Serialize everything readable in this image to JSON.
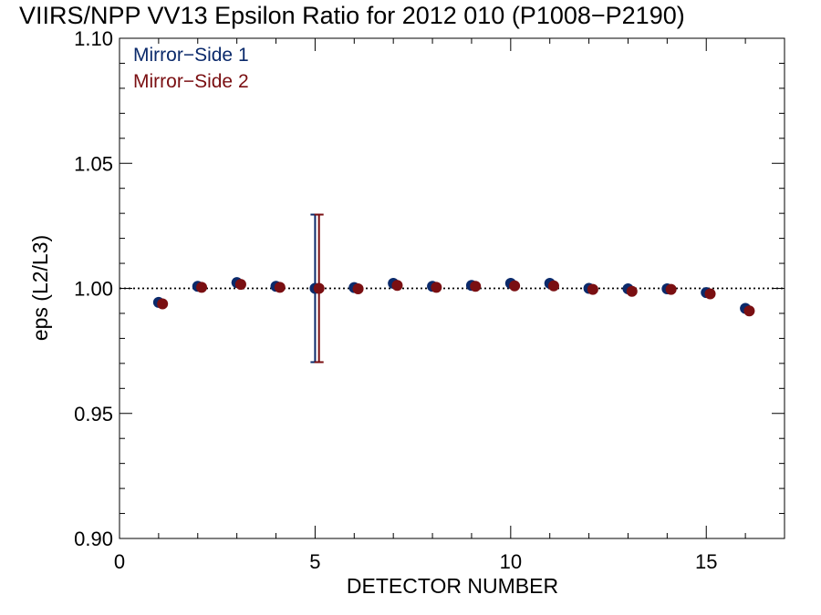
{
  "chart_data": {
    "type": "scatter",
    "title": "VIIRS/NPP VV13 Epsilon Ratio for 2012 010 (P1008−P2190)",
    "xlabel": "DETECTOR NUMBER",
    "ylabel": "eps (L2/L3)",
    "xlim": [
      0,
      17
    ],
    "ylim": [
      0.9,
      1.1
    ],
    "xticks": [
      0,
      5,
      10,
      15
    ],
    "xtick_labels": [
      "0",
      "5",
      "10",
      "15"
    ],
    "yticks": [
      0.9,
      0.95,
      1.0,
      1.05,
      1.1
    ],
    "ytick_labels": [
      "0.90",
      "0.95",
      "1.00",
      "1.05",
      "1.10"
    ],
    "x_minor_step": 1,
    "y_minor_step": 0.01,
    "reference_line": 1.0,
    "grid": false,
    "legend_position": "top-left",
    "series": [
      {
        "name": "Mirror−Side 1",
        "color": "#0b2a6b",
        "x": [
          1,
          2,
          3,
          4,
          5,
          6,
          7,
          8,
          9,
          10,
          11,
          12,
          13,
          14,
          15,
          16
        ],
        "values": [
          0.9944,
          1.0008,
          1.0023,
          1.0008,
          1.0,
          1.0003,
          1.002,
          1.0008,
          1.0012,
          1.002,
          1.002,
          1.0,
          0.9998,
          0.9998,
          0.9983,
          0.992
        ],
        "error_bar": {
          "x": 5,
          "low": 0.9705,
          "high": 1.0295
        }
      },
      {
        "name": "Mirror−Side 2",
        "color": "#7a0f12",
        "x": [
          1.1,
          2.1,
          3.1,
          4.1,
          5.1,
          6.1,
          7.1,
          8.1,
          9.1,
          10.1,
          11.1,
          12.1,
          13.1,
          14.1,
          15.1,
          16.1
        ],
        "values": [
          0.9938,
          1.0004,
          1.0016,
          1.0004,
          1.0,
          0.9998,
          1.0012,
          1.0004,
          1.0008,
          1.001,
          1.001,
          0.9996,
          0.9988,
          0.9996,
          0.9978,
          0.991
        ],
        "error_bar": {
          "x": 5.1,
          "low": 0.9705,
          "high": 1.0295
        }
      }
    ]
  }
}
